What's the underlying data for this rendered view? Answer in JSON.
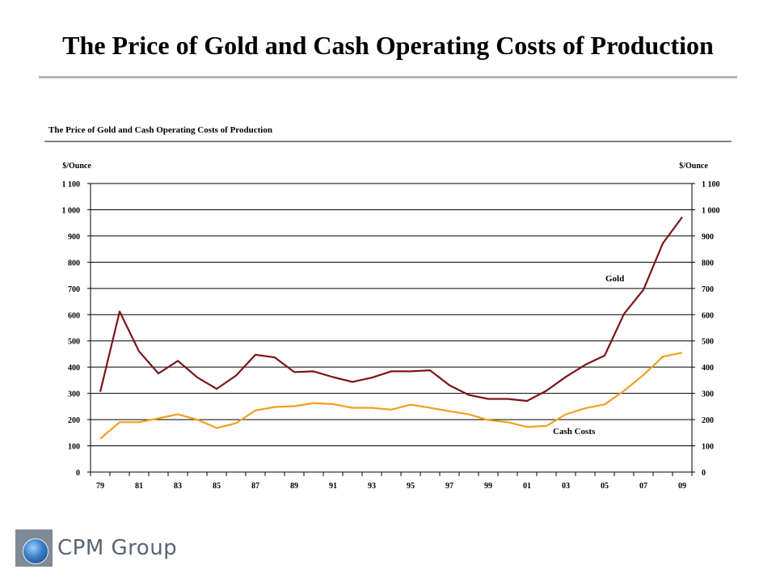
{
  "slide": {
    "title": "The Price of Gold and Cash Operating Costs of Production"
  },
  "logo": {
    "name": "CPM Group"
  },
  "chart_data": {
    "type": "line",
    "title": "The Price of Gold and Cash Operating Costs of Production",
    "ylabel_left": "$/Ounce",
    "ylabel_right": "$/Ounce",
    "ylim": [
      0,
      1100
    ],
    "y_ticks": [
      0,
      100,
      200,
      300,
      400,
      500,
      600,
      700,
      800,
      900,
      1000,
      1100
    ],
    "y_tick_labels": [
      "0",
      "100",
      "200",
      "300",
      "400",
      "500",
      "600",
      "700",
      "800",
      "900",
      "1 000",
      "1 100"
    ],
    "x": [
      1979,
      1980,
      1981,
      1982,
      1983,
      1984,
      1985,
      1986,
      1987,
      1988,
      1989,
      1990,
      1991,
      1992,
      1993,
      1994,
      1995,
      1996,
      1997,
      1998,
      1999,
      2000,
      2001,
      2002,
      2003,
      2004,
      2005,
      2006,
      2007,
      2008,
      2009
    ],
    "x_tick_labels": [
      "79",
      "81",
      "83",
      "85",
      "87",
      "89",
      "91",
      "93",
      "95",
      "97",
      "99",
      "01",
      "03",
      "05",
      "07",
      "09"
    ],
    "x_tick_years": [
      1979,
      1981,
      1983,
      1985,
      1987,
      1989,
      1991,
      1993,
      1995,
      1997,
      1999,
      2001,
      2003,
      2005,
      2007,
      2009
    ],
    "grid": true,
    "series": [
      {
        "name": "Gold",
        "color": "#7b1416",
        "values": [
          306,
          612,
          460,
          376,
          424,
          361,
          317,
          368,
          447,
          437,
          381,
          384,
          362,
          344,
          360,
          384,
          384,
          388,
          331,
          294,
          279,
          279,
          271,
          310,
          363,
          409,
          444,
          603,
          695,
          872,
          972
        ]
      },
      {
        "name": "Cash Costs",
        "color": "#f0a020",
        "values": [
          127,
          190,
          190,
          205,
          220,
          200,
          168,
          186,
          235,
          248,
          251,
          263,
          259,
          245,
          245,
          238,
          257,
          245,
          232,
          220,
          198,
          190,
          172,
          176,
          220,
          243,
          258,
          310,
          370,
          440,
          455
        ]
      }
    ]
  }
}
